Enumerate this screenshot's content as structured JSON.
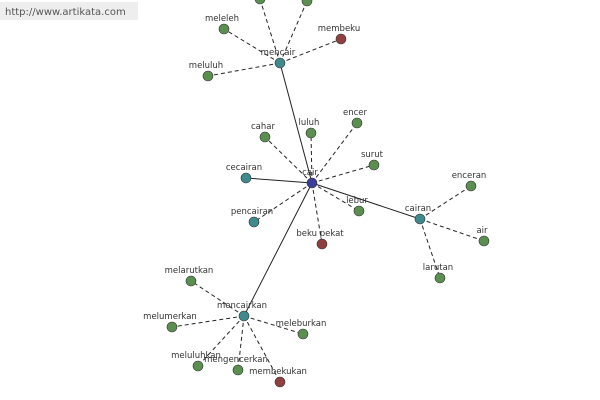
{
  "watermark": "http://www.artikata.com",
  "nodes": [
    {
      "label": "cair"
    },
    {
      "label": "mencair"
    },
    {
      "label": "meleleh"
    },
    {
      "label": "membeku"
    },
    {
      "label": "meluluh"
    },
    {
      "label": "cahar"
    },
    {
      "label": "luluh"
    },
    {
      "label": "encer"
    },
    {
      "label": "surut"
    },
    {
      "label": "cecairan"
    },
    {
      "label": "pencairan"
    },
    {
      "label": "lebur"
    },
    {
      "label": "beku pekat"
    },
    {
      "label": "cairan"
    },
    {
      "label": "enceran"
    },
    {
      "label": "air"
    },
    {
      "label": "larutan"
    },
    {
      "label": "mencairkan"
    },
    {
      "label": "melarutkan"
    },
    {
      "label": "melumerkan"
    },
    {
      "label": "meleburkan"
    },
    {
      "label": "meluluhkan"
    },
    {
      "label": "mengencerkan"
    },
    {
      "label": "membekukan"
    }
  ]
}
